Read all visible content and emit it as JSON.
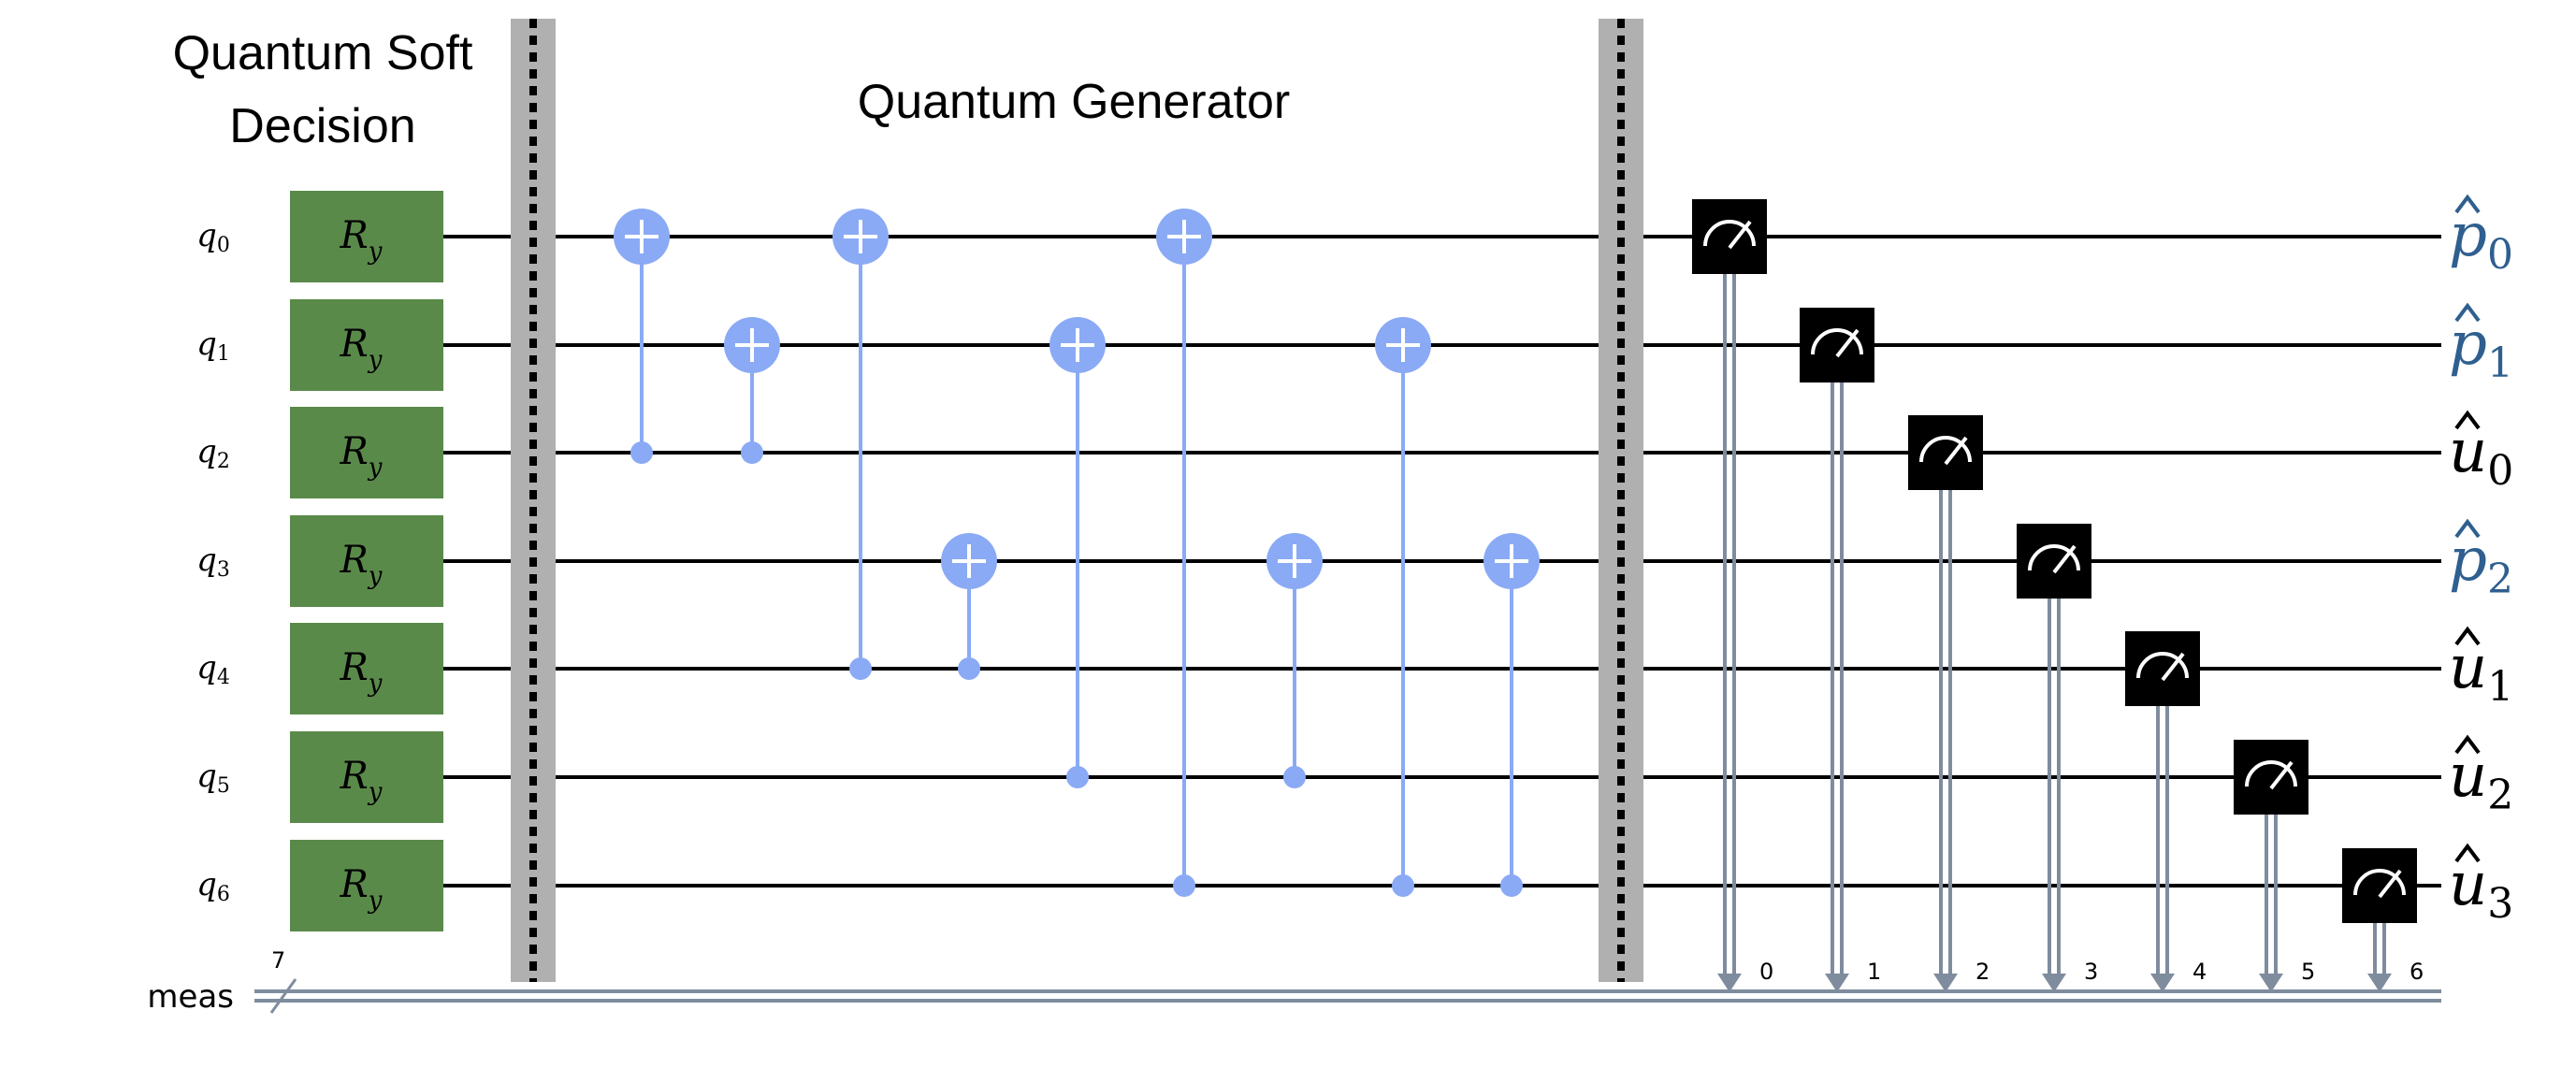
{
  "titles": {
    "soft_decision_line1": "Quantum Soft",
    "soft_decision_line2": "Decision",
    "generator": "Quantum Generator"
  },
  "qubits": [
    {
      "name": "q",
      "index": "0"
    },
    {
      "name": "q",
      "index": "1"
    },
    {
      "name": "q",
      "index": "2"
    },
    {
      "name": "q",
      "index": "3"
    },
    {
      "name": "q",
      "index": "4"
    },
    {
      "name": "q",
      "index": "5"
    },
    {
      "name": "q",
      "index": "6"
    }
  ],
  "ry_gate": {
    "base": "R",
    "sub": "y",
    "count": 7
  },
  "cnots": [
    {
      "target": 0,
      "control": 2
    },
    {
      "target": 1,
      "control": 2
    },
    {
      "target": 0,
      "control": 4
    },
    {
      "target": 3,
      "control": 4
    },
    {
      "target": 1,
      "control": 5
    },
    {
      "target": 0,
      "control": 6
    },
    {
      "target": 3,
      "control": 5
    },
    {
      "target": 1,
      "control": 6
    },
    {
      "target": 3,
      "control": 6
    }
  ],
  "measurements": [
    {
      "qubit": 0,
      "bit": "0"
    },
    {
      "qubit": 1,
      "bit": "1"
    },
    {
      "qubit": 2,
      "bit": "2"
    },
    {
      "qubit": 3,
      "bit": "3"
    },
    {
      "qubit": 4,
      "bit": "4"
    },
    {
      "qubit": 5,
      "bit": "5"
    },
    {
      "qubit": 6,
      "bit": "6"
    }
  ],
  "classical_register": {
    "label": "meas",
    "width": "7"
  },
  "outputs": [
    {
      "symbol": "p",
      "sub": "0",
      "color": "blue"
    },
    {
      "symbol": "p",
      "sub": "1",
      "color": "blue"
    },
    {
      "symbol": "u",
      "sub": "0",
      "color": "black"
    },
    {
      "symbol": "p",
      "sub": "2",
      "color": "blue"
    },
    {
      "symbol": "u",
      "sub": "1",
      "color": "black"
    },
    {
      "symbol": "u",
      "sub": "2",
      "color": "black"
    },
    {
      "symbol": "u",
      "sub": "3",
      "color": "black"
    }
  ],
  "colors": {
    "ry_fill": "#5a8a4a",
    "cnot": "#8aaaf5",
    "barrier": "#b0b0b0",
    "measure_box": "#000000",
    "classical_wire": "#7f8c9e",
    "blue_output": "#2f5f8f",
    "black_output": "#000000",
    "wire": "#000000"
  }
}
